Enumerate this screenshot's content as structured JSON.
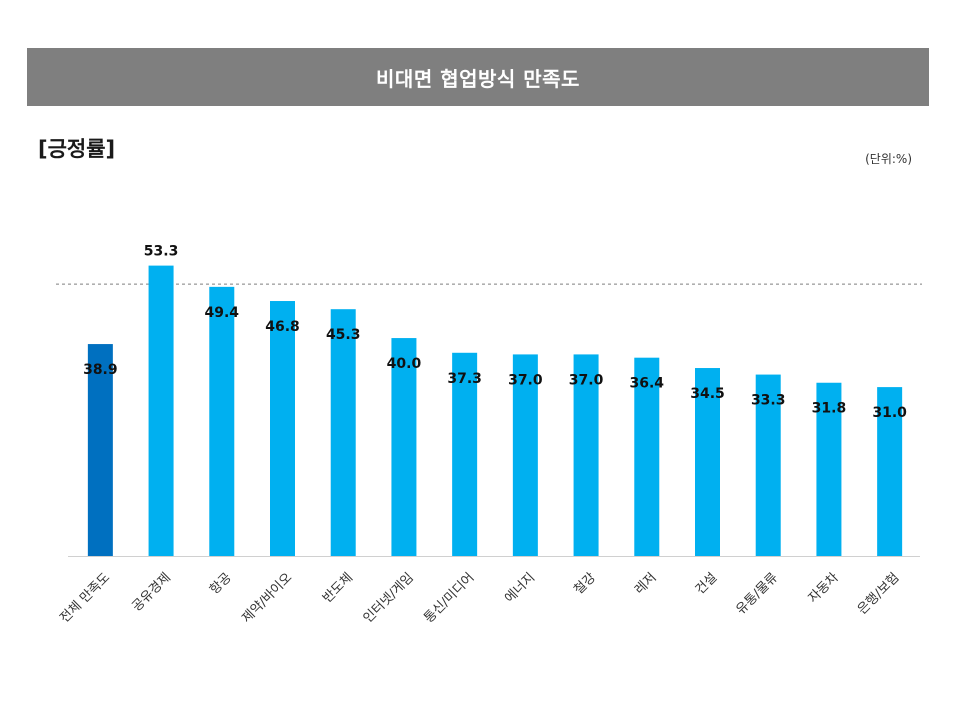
{
  "header": {
    "title": "비대면 협업방식 만족도"
  },
  "section_label": "[긍정률]",
  "unit_label": "(단위:%)",
  "colors": {
    "header_bg": "#7f7f7f",
    "overall_bar": "#0070c0",
    "bar": "#00b0f0",
    "reference_line": "#7f7f7f"
  },
  "chart_data": {
    "type": "bar",
    "title": "비대면 협업방식 만족도",
    "categories": [
      "전체 만족도",
      "공유경제",
      "항공",
      "제약/바이오",
      "반도체",
      "인터넷/게임",
      "통신/미디어",
      "에너지",
      "철강",
      "레저",
      "건설",
      "유통/물류",
      "자동차",
      "은행/보험"
    ],
    "values": [
      38.9,
      53.3,
      49.4,
      46.8,
      45.3,
      40.0,
      37.3,
      37.0,
      37.0,
      36.4,
      34.5,
      33.3,
      31.8,
      31.0
    ],
    "value_labels": [
      "38.9",
      "53.3",
      "49.4",
      "46.8",
      "45.3",
      "40.0",
      "37.3",
      "37.0",
      "37.0",
      "36.4",
      "34.5",
      "33.3",
      "31.8",
      "31.0"
    ],
    "highlight_category": "전체 만족도",
    "reference_line": "dashed horizontal line",
    "ylim": [
      0,
      58
    ],
    "grid": false,
    "legend": "none",
    "xlabel": "",
    "ylabel": ""
  }
}
